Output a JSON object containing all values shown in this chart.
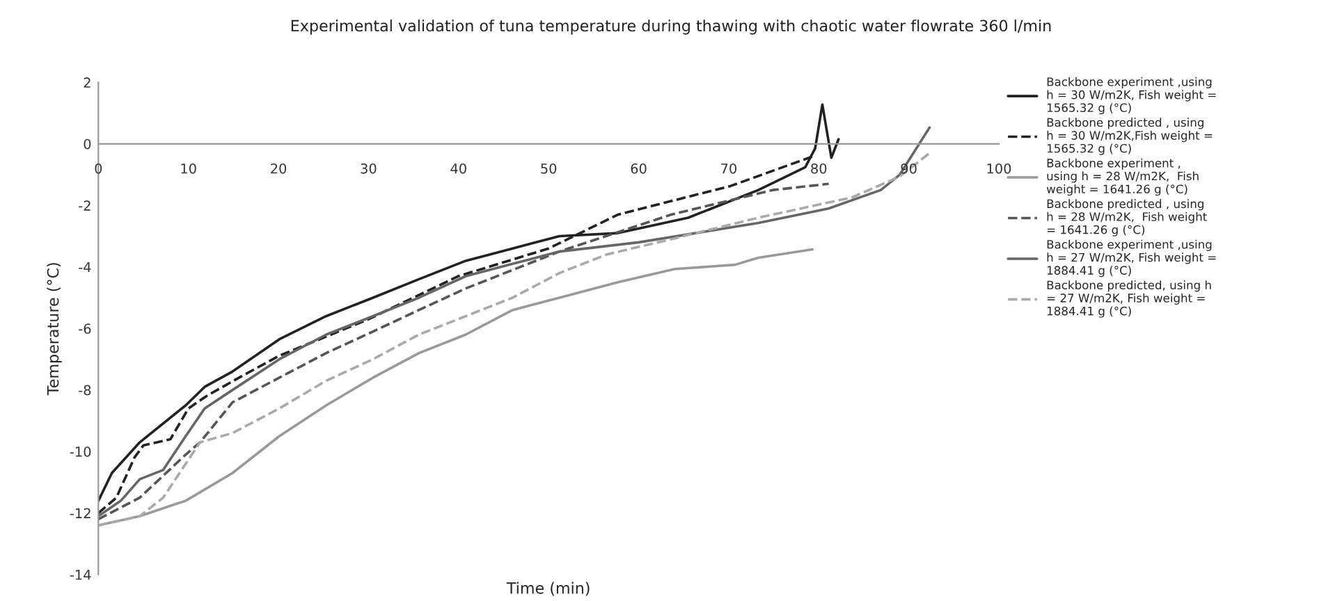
{
  "chart_data": {
    "type": "line",
    "title": "Experimental validation of tuna temperature during thawing with chaotic water flowrate 360 l/min",
    "xlabel": "Time (min)",
    "ylabel": "Temperature (°C)",
    "xlim": [
      0,
      100
    ],
    "xticks": [
      0,
      10,
      20,
      30,
      40,
      50,
      60,
      70,
      80,
      90,
      100
    ],
    "ylim": [
      -14,
      2
    ],
    "yticks": [
      -14,
      -12,
      -10,
      -8,
      -6,
      -4,
      -2,
      0,
      2
    ],
    "grid": false,
    "legend": "right",
    "marker": "none",
    "series": [
      {
        "name": "Backbone experiment ,using\nh = 30 W/m2K, Fish weight =\n1565.32 g (°C)",
        "color": "#222222",
        "line_style": "solid",
        "x": [
          0,
          1.5,
          4.6,
          9.7,
          11.8,
          14.9,
          20.1,
          25.3,
          30.5,
          35.6,
          40.8,
          46,
          51.2,
          57.7,
          65.5,
          73.3,
          78.5,
          79.6,
          80.4,
          81.4,
          82.2
        ],
        "values": [
          -11.6,
          -10.7,
          -9.7,
          -8.5,
          -7.9,
          -7.4,
          -6.35,
          -5.6,
          -5.0,
          -4.4,
          -3.8,
          -3.4,
          -3.0,
          -2.9,
          -2.4,
          -1.5,
          -0.76,
          -0.15,
          1.28,
          -0.45,
          0.15
        ]
      },
      {
        "name": "Backbone predicted , using\nh = 30 W/m2K,Fish weight =\n1565.32 g (°C)",
        "color": "#222222",
        "line_style": "dashed",
        "x": [
          0,
          2,
          4,
          5,
          8,
          10,
          12,
          15,
          20,
          30,
          40,
          50,
          57.7,
          70.2,
          79.6
        ],
        "values": [
          -12.0,
          -11.5,
          -10.2,
          -9.8,
          -9.6,
          -8.6,
          -8.2,
          -7.7,
          -6.9,
          -5.7,
          -4.3,
          -3.4,
          -2.3,
          -1.37,
          -0.38
        ]
      },
      {
        "name": "Backbone experiment ,\nusing h = 28 W/m2K,  Fish\nweight = 1641.26 g (°C)",
        "color": "#999999",
        "line_style": "solid",
        "x": [
          0,
          4.6,
          9.7,
          14.9,
          20.1,
          25.3,
          30.5,
          35.6,
          40.8,
          46,
          51.2,
          57.7,
          64,
          70.7,
          73.3,
          79.3
        ],
        "values": [
          -12.4,
          -12.1,
          -11.6,
          -10.7,
          -9.5,
          -8.5,
          -7.6,
          -6.8,
          -6.2,
          -5.4,
          -5.0,
          -4.5,
          -4.07,
          -3.93,
          -3.7,
          -3.43
        ]
      },
      {
        "name": "Backbone predicted , using\nh = 28 W/m2K,  Fish weight\n= 1641.26 g (°C)",
        "color": "#555555",
        "line_style": "dashed",
        "x": [
          0,
          4.6,
          9.7,
          11.3,
          14.9,
          20.1,
          25.3,
          30.5,
          35.6,
          40.8,
          51.2,
          63.6,
          74.9,
          81.1
        ],
        "values": [
          -12.2,
          -11.5,
          -10.1,
          -9.7,
          -8.4,
          -7.6,
          -6.8,
          -6.1,
          -5.4,
          -4.7,
          -3.5,
          -2.3,
          -1.5,
          -1.3
        ]
      },
      {
        "name": "Backbone experiment ,using\nh = 27 W/m2K, Fish weight =\n1884.41 g (°C)",
        "color": "#666666",
        "line_style": "solid",
        "x": [
          0,
          2.5,
          4.6,
          7.2,
          9.7,
          11.8,
          14.9,
          20.1,
          25.3,
          30.5,
          35.6,
          40.8,
          46,
          51.2,
          60,
          73.3,
          81.1,
          86.9,
          89,
          92.3
        ],
        "values": [
          -12.1,
          -11.6,
          -10.9,
          -10.6,
          -9.5,
          -8.6,
          -8.0,
          -7.0,
          -6.2,
          -5.6,
          -5.0,
          -4.3,
          -3.9,
          -3.5,
          -3.2,
          -2.57,
          -2.1,
          -1.5,
          -1.0,
          0.53
        ]
      },
      {
        "name": "Backbone predicted, using h\n= 27 W/m2K, Fish weight =\n1884.41 g (°C)",
        "color": "#aaaaaa",
        "line_style": "dashed",
        "x": [
          0,
          4.6,
          7.2,
          9.7,
          11.3,
          14.9,
          20.1,
          25.3,
          30.5,
          35.6,
          40.8,
          46,
          51.2,
          56.4,
          63.6,
          73.3,
          83.7,
          89,
          92.3
        ],
        "values": [
          -12.4,
          -12.1,
          -11.5,
          -10.4,
          -9.7,
          -9.4,
          -8.6,
          -7.7,
          -7.0,
          -6.2,
          -5.6,
          -5.0,
          -4.2,
          -3.6,
          -3.1,
          -2.4,
          -1.74,
          -1.06,
          -0.3
        ]
      }
    ]
  }
}
